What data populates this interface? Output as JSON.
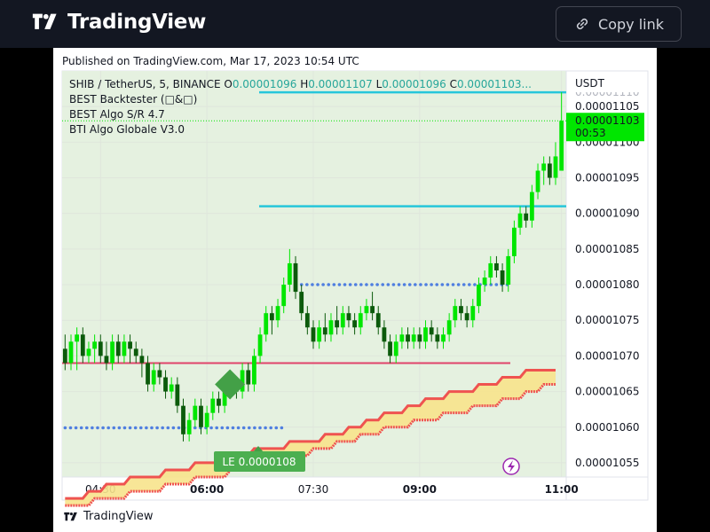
{
  "header": {
    "brand": "TradingView",
    "copy_link_label": "Copy link"
  },
  "published": "Published on TradingView.com, Mar 17, 2023 10:54 UTC",
  "footer_brand": "TradingView",
  "colors": {
    "up": "#00e600",
    "down": "#0b5a0b",
    "ma_fast": "#ef5350",
    "band_fill": "#f7e38c",
    "resistance": "#26c6da",
    "support_dots": "#4f7fe0",
    "pivot": "#e0446a",
    "signal": "#43a047",
    "bg_zone": "#e5f1e0"
  },
  "chart_data": {
    "type": "candlestick",
    "symbol_line": "SHIB / TetherUS, 5, BINANCE",
    "ohlc": {
      "o_label": "O",
      "o": "0.00001096",
      "h_label": "H",
      "h": "0.00001107",
      "l_label": "L",
      "l": "0.00001096",
      "c_label": "C",
      "c": "0.00001103..."
    },
    "indicators": [
      "BEST Backtester (□&□)",
      "BEST Algo S/R 4.7",
      "BTI Algo Globale V3.0"
    ],
    "currency": "USDT",
    "y_ticks": [
      "0.00001105",
      "0.00001100",
      "0.00001095",
      "0.00001090",
      "0.00001085",
      "0.00001080",
      "0.00001075",
      "0.00001070",
      "0.00001065",
      "0.00001060",
      "0.00001055"
    ],
    "y_tick_values": [
      1.105e-05,
      1.1e-05,
      1.095e-05,
      1.09e-05,
      1.085e-05,
      1.08e-05,
      1.075e-05,
      1.07e-05,
      1.065e-05,
      1.06e-05,
      1.055e-05
    ],
    "y_tick_partial": "0.00001110",
    "ylim": [
      1.053e-05,
      1.11e-05
    ],
    "x_ticks": [
      {
        "label": "04:30",
        "bar": 6,
        "bold": false
      },
      {
        "label": "06:00",
        "bar": 24,
        "bold": true
      },
      {
        "label": "07:30",
        "bar": 42,
        "bold": false
      },
      {
        "label": "09:00",
        "bar": 60,
        "bold": true
      },
      {
        "label": "11:00",
        "bar": 84,
        "bold": true
      }
    ],
    "last_price": "0.00001103",
    "countdown": "00:53",
    "resistance_levels": [
      1.107e-05,
      1.091e-05
    ],
    "support_levels": [
      {
        "value": 1.08e-05,
        "from_bar": 40
      },
      {
        "value": 1.0599e-05,
        "from_bar": 0,
        "to_bar": 37
      }
    ],
    "pivot_level": 1.069e-05,
    "signal_label": "LE 0.0000108",
    "candles": [
      [
        1.071e-05,
        1.069e-05,
        1.073e-05,
        1.068e-05
      ],
      [
        1.069e-05,
        1.072e-05,
        1.073e-05,
        1.068e-05
      ],
      [
        1.072e-05,
        1.073e-05,
        1.074e-05,
        1.068e-05
      ],
      [
        1.073e-05,
        1.07e-05,
        1.074e-05,
        1.069e-05
      ],
      [
        1.07e-05,
        1.071e-05,
        1.072e-05,
        1.069e-05
      ],
      [
        1.071e-05,
        1.072e-05,
        1.073e-05,
        1.069e-05
      ],
      [
        1.072e-05,
        1.07e-05,
        1.073e-05,
        1.069e-05
      ],
      [
        1.07e-05,
        1.069e-05,
        1.072e-05,
        1.068e-05
      ],
      [
        1.069e-05,
        1.072e-05,
        1.073e-05,
        1.068e-05
      ],
      [
        1.072e-05,
        1.07e-05,
        1.073e-05,
        1.069e-05
      ],
      [
        1.07e-05,
        1.072e-05,
        1.073e-05,
        1.069e-05
      ],
      [
        1.072e-05,
        1.071e-05,
        1.073e-05,
        1.069e-05
      ],
      [
        1.071e-05,
        1.07e-05,
        1.072e-05,
        1.069e-05
      ],
      [
        1.07e-05,
        1.069e-05,
        1.071e-05,
        1.067e-05
      ],
      [
        1.069e-05,
        1.066e-05,
        1.07e-05,
        1.065e-05
      ],
      [
        1.066e-05,
        1.068e-05,
        1.069e-05,
        1.065e-05
      ],
      [
        1.068e-05,
        1.067e-05,
        1.069e-05,
        1.066e-05
      ],
      [
        1.067e-05,
        1.065e-05,
        1.068e-05,
        1.064e-05
      ],
      [
        1.065e-05,
        1.066e-05,
        1.067e-05,
        1.064e-05
      ],
      [
        1.066e-05,
        1.063e-05,
        1.067e-05,
        1.062e-05
      ],
      [
        1.063e-05,
        1.059e-05,
        1.064e-05,
        1.058e-05
      ],
      [
        1.059e-05,
        1.061e-05,
        1.062e-05,
        1.058e-05
      ],
      [
        1.061e-05,
        1.063e-05,
        1.064e-05,
        1.06e-05
      ],
      [
        1.063e-05,
        1.06e-05,
        1.064e-05,
        1.059e-05
      ],
      [
        1.06e-05,
        1.062e-05,
        1.063e-05,
        1.059e-05
      ],
      [
        1.062e-05,
        1.064e-05,
        1.065e-05,
        1.061e-05
      ],
      [
        1.064e-05,
        1.063e-05,
        1.065e-05,
        1.062e-05
      ],
      [
        1.063e-05,
        1.065e-05,
        1.066e-05,
        1.062e-05
      ],
      [
        1.065e-05,
        1.066e-05,
        1.067e-05,
        1.064e-05
      ],
      [
        1.066e-05,
        1.065e-05,
        1.067e-05,
        1.064e-05
      ],
      [
        1.065e-05,
        1.068e-05,
        1.069e-05,
        1.064e-05
      ],
      [
        1.068e-05,
        1.066e-05,
        1.069e-05,
        1.065e-05
      ],
      [
        1.066e-05,
        1.07e-05,
        1.071e-05,
        1.065e-05
      ],
      [
        1.07e-05,
        1.073e-05,
        1.074e-05,
        1.069e-05
      ],
      [
        1.073e-05,
        1.076e-05,
        1.077e-05,
        1.072e-05
      ],
      [
        1.076e-05,
        1.075e-05,
        1.077e-05,
        1.073e-05
      ],
      [
        1.075e-05,
        1.077e-05,
        1.078e-05,
        1.074e-05
      ],
      [
        1.077e-05,
        1.08e-05,
        1.081e-05,
        1.076e-05
      ],
      [
        1.08e-05,
        1.083e-05,
        1.085e-05,
        1.079e-05
      ],
      [
        1.083e-05,
        1.079e-05,
        1.084e-05,
        1.078e-05
      ],
      [
        1.079e-05,
        1.076e-05,
        1.08e-05,
        1.075e-05
      ],
      [
        1.076e-05,
        1.074e-05,
        1.077e-05,
        1.073e-05
      ],
      [
        1.074e-05,
        1.072e-05,
        1.075e-05,
        1.071e-05
      ],
      [
        1.072e-05,
        1.074e-05,
        1.075e-05,
        1.071e-05
      ],
      [
        1.074e-05,
        1.073e-05,
        1.076e-05,
        1.072e-05
      ],
      [
        1.073e-05,
        1.075e-05,
        1.076e-05,
        1.072e-05
      ],
      [
        1.075e-05,
        1.074e-05,
        1.077e-05,
        1.073e-05
      ],
      [
        1.074e-05,
        1.076e-05,
        1.077e-05,
        1.073e-05
      ],
      [
        1.076e-05,
        1.075e-05,
        1.077e-05,
        1.074e-05
      ],
      [
        1.075e-05,
        1.074e-05,
        1.076e-05,
        1.073e-05
      ],
      [
        1.074e-05,
        1.076e-05,
        1.077e-05,
        1.073e-05
      ],
      [
        1.076e-05,
        1.077e-05,
        1.078e-05,
        1.075e-05
      ],
      [
        1.077e-05,
        1.076e-05,
        1.079e-05,
        1.075e-05
      ],
      [
        1.076e-05,
        1.074e-05,
        1.077e-05,
        1.073e-05
      ],
      [
        1.074e-05,
        1.072e-05,
        1.075e-05,
        1.071e-05
      ],
      [
        1.072e-05,
        1.07e-05,
        1.073e-05,
        1.069e-05
      ],
      [
        1.07e-05,
        1.072e-05,
        1.073e-05,
        1.069e-05
      ],
      [
        1.072e-05,
        1.073e-05,
        1.074e-05,
        1.071e-05
      ],
      [
        1.073e-05,
        1.072e-05,
        1.074e-05,
        1.071e-05
      ],
      [
        1.072e-05,
        1.073e-05,
        1.074e-05,
        1.071e-05
      ],
      [
        1.073e-05,
        1.072e-05,
        1.074e-05,
        1.071e-05
      ],
      [
        1.072e-05,
        1.074e-05,
        1.075e-05,
        1.071e-05
      ],
      [
        1.074e-05,
        1.073e-05,
        1.075e-05,
        1.072e-05
      ],
      [
        1.073e-05,
        1.072e-05,
        1.074e-05,
        1.071e-05
      ],
      [
        1.072e-05,
        1.073e-05,
        1.074e-05,
        1.071e-05
      ],
      [
        1.073e-05,
        1.075e-05,
        1.076e-05,
        1.072e-05
      ],
      [
        1.075e-05,
        1.077e-05,
        1.078e-05,
        1.074e-05
      ],
      [
        1.077e-05,
        1.076e-05,
        1.078e-05,
        1.075e-05
      ],
      [
        1.076e-05,
        1.075e-05,
        1.077e-05,
        1.074e-05
      ],
      [
        1.075e-05,
        1.077e-05,
        1.078e-05,
        1.074e-05
      ],
      [
        1.077e-05,
        1.08e-05,
        1.081e-05,
        1.076e-05
      ],
      [
        1.08e-05,
        1.081e-05,
        1.082e-05,
        1.079e-05
      ],
      [
        1.081e-05,
        1.083e-05,
        1.084e-05,
        1.08e-05
      ],
      [
        1.083e-05,
        1.082e-05,
        1.084e-05,
        1.081e-05
      ],
      [
        1.082e-05,
        1.08e-05,
        1.083e-05,
        1.079e-05
      ],
      [
        1.08e-05,
        1.084e-05,
        1.085e-05,
        1.079e-05
      ],
      [
        1.084e-05,
        1.088e-05,
        1.089e-05,
        1.083e-05
      ],
      [
        1.088e-05,
        1.09e-05,
        1.091e-05,
        1.087e-05
      ],
      [
        1.09e-05,
        1.089e-05,
        1.091e-05,
        1.088e-05
      ],
      [
        1.089e-05,
        1.093e-05,
        1.094e-05,
        1.088e-05
      ],
      [
        1.093e-05,
        1.096e-05,
        1.097e-05,
        1.092e-05
      ],
      [
        1.096e-05,
        1.097e-05,
        1.098e-05,
        1.094e-05
      ],
      [
        1.097e-05,
        1.095e-05,
        1.098e-05,
        1.094e-05
      ],
      [
        1.095e-05,
        1.098e-05,
        1.1e-05,
        1.094e-05
      ],
      [
        1.096e-05,
        1.103e-05,
        1.107e-05,
        1.096e-05
      ]
    ],
    "ma_fast": [
      1.05e-05,
      1.05e-05,
      1.05e-05,
      1.05e-05,
      1.051e-05,
      1.051e-05,
      1.051e-05,
      1.052e-05,
      1.052e-05,
      1.052e-05,
      1.052e-05,
      1.053e-05,
      1.053e-05,
      1.053e-05,
      1.053e-05,
      1.053e-05,
      1.053e-05,
      1.054e-05,
      1.054e-05,
      1.054e-05,
      1.054e-05,
      1.054e-05,
      1.055e-05,
      1.055e-05,
      1.055e-05,
      1.055e-05,
      1.055e-05,
      1.056e-05,
      1.056e-05,
      1.056e-05,
      1.056e-05,
      1.056e-05,
      1.057e-05,
      1.057e-05,
      1.057e-05,
      1.057e-05,
      1.057e-05,
      1.057e-05,
      1.058e-05,
      1.058e-05,
      1.058e-05,
      1.058e-05,
      1.058e-05,
      1.058e-05,
      1.059e-05,
      1.059e-05,
      1.059e-05,
      1.059e-05,
      1.06e-05,
      1.06e-05,
      1.06e-05,
      1.061e-05,
      1.061e-05,
      1.061e-05,
      1.062e-05,
      1.062e-05,
      1.062e-05,
      1.062e-05,
      1.063e-05,
      1.063e-05,
      1.063e-05,
      1.064e-05,
      1.064e-05,
      1.064e-05,
      1.064e-05,
      1.065e-05,
      1.065e-05,
      1.065e-05,
      1.065e-05,
      1.065e-05,
      1.066e-05,
      1.066e-05,
      1.066e-05,
      1.066e-05,
      1.067e-05,
      1.067e-05,
      1.067e-05,
      1.067e-05,
      1.068e-05,
      1.068e-05,
      1.068e-05,
      1.068e-05,
      1.068e-05,
      1.068e-05
    ],
    "ma_slow": [
      1.049e-05,
      1.049e-05,
      1.049e-05,
      1.049e-05,
      1.049e-05,
      1.05e-05,
      1.05e-05,
      1.05e-05,
      1.05e-05,
      1.05e-05,
      1.05e-05,
      1.051e-05,
      1.051e-05,
      1.051e-05,
      1.051e-05,
      1.051e-05,
      1.051e-05,
      1.052e-05,
      1.052e-05,
      1.052e-05,
      1.052e-05,
      1.052e-05,
      1.053e-05,
      1.053e-05,
      1.053e-05,
      1.053e-05,
      1.053e-05,
      1.053e-05,
      1.054e-05,
      1.054e-05,
      1.054e-05,
      1.054e-05,
      1.054e-05,
      1.055e-05,
      1.055e-05,
      1.055e-05,
      1.055e-05,
      1.055e-05,
      1.056e-05,
      1.056e-05,
      1.056e-05,
      1.056e-05,
      1.057e-05,
      1.057e-05,
      1.057e-05,
      1.057e-05,
      1.058e-05,
      1.058e-05,
      1.058e-05,
      1.058e-05,
      1.059e-05,
      1.059e-05,
      1.059e-05,
      1.059e-05,
      1.06e-05,
      1.06e-05,
      1.06e-05,
      1.06e-05,
      1.06e-05,
      1.061e-05,
      1.061e-05,
      1.061e-05,
      1.061e-05,
      1.061e-05,
      1.062e-05,
      1.062e-05,
      1.062e-05,
      1.062e-05,
      1.062e-05,
      1.063e-05,
      1.063e-05,
      1.063e-05,
      1.063e-05,
      1.063e-05,
      1.064e-05,
      1.064e-05,
      1.064e-05,
      1.064e-05,
      1.065e-05,
      1.065e-05,
      1.065e-05,
      1.066e-05,
      1.066e-05,
      1.066e-05
    ]
  }
}
